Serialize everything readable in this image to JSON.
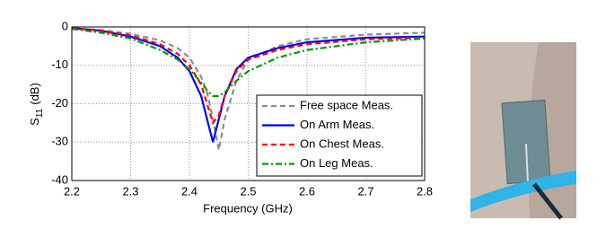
{
  "chart_data": {
    "type": "line",
    "xlabel": "Frequency (GHz)",
    "ylabel": {
      "main": "S",
      "subscript": "11",
      "unit": "(dB)"
    },
    "x": [
      2.2,
      2.25,
      2.3,
      2.35,
      2.38,
      2.4,
      2.42,
      2.43,
      2.44,
      2.45,
      2.46,
      2.48,
      2.5,
      2.55,
      2.6,
      2.7,
      2.8
    ],
    "series": [
      {
        "name": "Free space Meas.",
        "color": "#8c8c8c",
        "dash": "6,4",
        "values": [
          -0.3,
          -0.8,
          -1.8,
          -3.5,
          -5.5,
          -8,
          -13,
          -17,
          -24,
          -32,
          -24,
          -14,
          -8.5,
          -5,
          -3.2,
          -2,
          -1.5
        ]
      },
      {
        "name": "On Arm Meas.",
        "color": "#0000ff",
        "dash": "none",
        "values": [
          -0.3,
          -1,
          -2.5,
          -5,
          -8,
          -11.5,
          -18,
          -24,
          -30,
          -24,
          -18,
          -11,
          -8,
          -5.5,
          -4,
          -2.8,
          -2.5
        ]
      },
      {
        "name": "On Chest Meas.",
        "color": "#ff0000",
        "dash": "6,4",
        "values": [
          -0.3,
          -1,
          -2.2,
          -4.5,
          -7,
          -10,
          -15,
          -20,
          -25,
          -23,
          -18,
          -11.5,
          -8.5,
          -6,
          -4.5,
          -3.2,
          -2.8
        ]
      },
      {
        "name": "On Leg Meas.",
        "color": "#009900",
        "dash": "7,3,2,3",
        "values": [
          -0.5,
          -1.5,
          -3,
          -6,
          -8.5,
          -11,
          -14.5,
          -16.5,
          -18,
          -18,
          -17,
          -14,
          -11.5,
          -8,
          -6,
          -4,
          -3
        ]
      }
    ],
    "xlim": [
      2.2,
      2.8
    ],
    "xticks": [
      2.2,
      2.3,
      2.4,
      2.5,
      2.6,
      2.7,
      2.8
    ],
    "ylim": [
      -40,
      0
    ],
    "yticks": [
      -40,
      -30,
      -20,
      -10,
      0
    ],
    "grid": true,
    "legend": "lower right"
  }
}
